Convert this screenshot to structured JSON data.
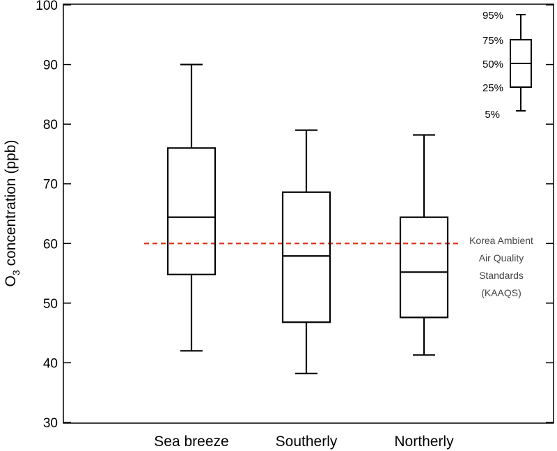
{
  "chart_data": {
    "type": "boxplot",
    "title": "",
    "xlabel": "",
    "ylabel": "O3 concentration (ppb)",
    "ylabel_main": "O",
    "ylabel_sub": "3",
    "ylabel_rest": " concentration (ppb)",
    "ylim": [
      30,
      100
    ],
    "yticks": [
      30,
      40,
      50,
      60,
      70,
      80,
      90,
      100
    ],
    "categories": [
      "Sea breeze",
      "Southerly",
      "Northerly"
    ],
    "boxes": [
      {
        "name": "Sea breeze",
        "p5": 42.0,
        "p25": 54.8,
        "p50": 64.4,
        "p75": 76.0,
        "p95": 90.0
      },
      {
        "name": "Southerly",
        "p5": 38.2,
        "p25": 46.8,
        "p50": 57.9,
        "p75": 68.6,
        "p95": 79.0
      },
      {
        "name": "Northerly",
        "p5": 41.3,
        "p25": 47.6,
        "p50": 55.2,
        "p75": 64.4,
        "p95": 78.2
      }
    ],
    "reference_line": {
      "value": 60,
      "color": "#e0301e",
      "style": "dashed",
      "label_lines": [
        "Korea Ambient",
        "Air Quality",
        "Standards",
        "(KAAQS)"
      ]
    },
    "legend": {
      "position": "top-right",
      "labels": [
        "95%",
        "75%",
        "50%",
        "25%",
        "5%"
      ]
    }
  }
}
